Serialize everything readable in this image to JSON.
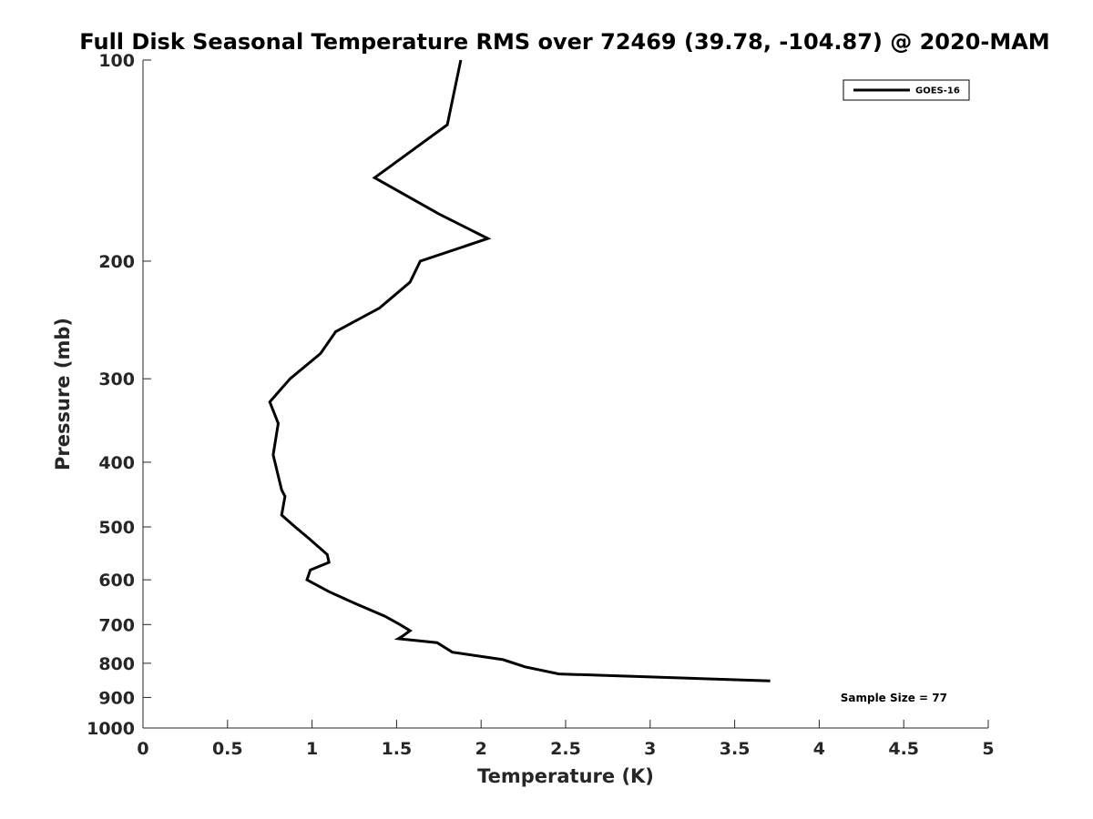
{
  "chart_data": {
    "type": "line",
    "title": "Full Disk Seasonal Temperature RMS over 72469 (39.78, -104.87) @ 2020-MAM",
    "xlabel": "Temperature (K)",
    "ylabel": "Pressure (mb)",
    "xlim": [
      0,
      5
    ],
    "ylim": [
      100,
      1000
    ],
    "yscale": "log",
    "y_reversed": true,
    "grid": false,
    "xticks": [
      0,
      0.5,
      1,
      1.5,
      2,
      2.5,
      3,
      3.5,
      4,
      4.5,
      5
    ],
    "xtick_labels": [
      "0",
      "0.5",
      "1",
      "1.5",
      "2",
      "2.5",
      "3",
      "3.5",
      "4",
      "4.5",
      "5"
    ],
    "yticks": [
      100,
      200,
      300,
      400,
      500,
      600,
      700,
      800,
      900,
      1000
    ],
    "ytick_labels": [
      "100",
      "200",
      "300",
      "400",
      "500",
      "600",
      "700",
      "800",
      "900",
      "1000"
    ],
    "legend": {
      "entries": [
        "GOES-16"
      ],
      "placement": "top-right"
    },
    "annotations": [
      {
        "text": "Sample Size = 77",
        "placement": "bottom-right"
      }
    ],
    "series": [
      {
        "name": "GOES-16",
        "color": "#000000",
        "points": [
          [
            1.88,
            100
          ],
          [
            1.8,
            125
          ],
          [
            1.37,
            150
          ],
          [
            1.75,
            170
          ],
          [
            2.04,
            185
          ],
          [
            1.64,
            200
          ],
          [
            1.58,
            215
          ],
          [
            1.4,
            235
          ],
          [
            1.14,
            255
          ],
          [
            1.05,
            275
          ],
          [
            0.87,
            300
          ],
          [
            0.75,
            325
          ],
          [
            0.8,
            350
          ],
          [
            0.77,
            390
          ],
          [
            0.82,
            440
          ],
          [
            0.84,
            450
          ],
          [
            0.82,
            480
          ],
          [
            0.9,
            500
          ],
          [
            0.98,
            520
          ],
          [
            1.09,
            550
          ],
          [
            1.1,
            565
          ],
          [
            0.99,
            580
          ],
          [
            0.97,
            600
          ],
          [
            1.1,
            625
          ],
          [
            1.25,
            650
          ],
          [
            1.43,
            680
          ],
          [
            1.52,
            700
          ],
          [
            1.58,
            715
          ],
          [
            1.53,
            730
          ],
          [
            1.51,
            735
          ],
          [
            1.74,
            745
          ],
          [
            1.83,
            770
          ],
          [
            2.13,
            790
          ],
          [
            2.26,
            810
          ],
          [
            2.46,
            830
          ],
          [
            3.71,
            850
          ]
        ]
      }
    ]
  }
}
